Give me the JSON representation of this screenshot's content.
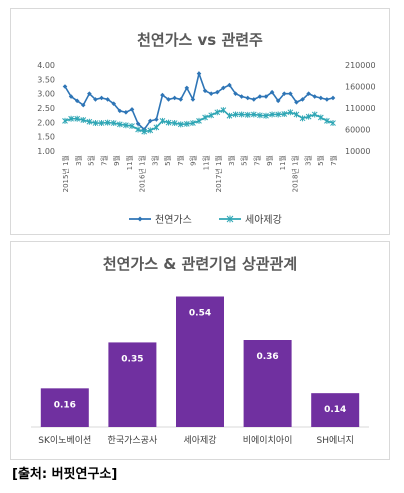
{
  "source_note": "[출처: 버핏연구소]",
  "chart_data": [
    {
      "type": "line",
      "title": "천연가스 vs 관련주",
      "y_left": {
        "ticks": [
          "4.00",
          "3.50",
          "3.00",
          "2.50",
          "2.00",
          "1.50",
          "1.00"
        ],
        "ylim": [
          1.0,
          4.0
        ]
      },
      "y_right": {
        "ticks": [
          "210000",
          "160000",
          "110000",
          "60000",
          "10000"
        ],
        "ylim": [
          10000,
          210000
        ]
      },
      "x_labels": [
        "2015년 1월",
        "3월",
        "5월",
        "7월",
        "9월",
        "11월",
        "2016년 1월",
        "3월",
        "5월",
        "7월",
        "9월",
        "11월",
        "2017년 1월",
        "3월",
        "5월",
        "7월",
        "9월",
        "11월",
        "2018년 1월",
        "3월",
        "5월",
        "7월"
      ],
      "year_labels": [
        "2015년",
        "2016년",
        "2017년",
        "2018년"
      ],
      "month_text": "월",
      "series": [
        {
          "name": "천연가스",
          "axis": "left",
          "color": "#2e75b6",
          "marker": "diamond",
          "values": [
            3.25,
            2.9,
            2.75,
            2.6,
            3.0,
            2.8,
            2.85,
            2.8,
            2.65,
            2.4,
            2.35,
            2.45,
            1.95,
            1.75,
            2.05,
            2.1,
            2.95,
            2.8,
            2.85,
            2.8,
            3.2,
            2.8,
            3.7,
            3.1,
            3.0,
            3.05,
            3.2,
            3.3,
            3.0,
            2.9,
            2.85,
            2.8,
            2.9,
            2.9,
            3.05,
            2.75,
            3.0,
            3.0,
            2.7,
            2.8,
            3.0,
            2.9,
            2.85,
            2.8,
            2.85
          ]
        },
        {
          "name": "세아제강",
          "axis": "right",
          "color": "#2fa6b5",
          "marker": "star",
          "values": [
            80000,
            85000,
            85000,
            82000,
            78000,
            75000,
            75000,
            76000,
            75000,
            72000,
            70000,
            68000,
            60000,
            55000,
            58000,
            65000,
            80000,
            76000,
            75000,
            72000,
            73000,
            75000,
            80000,
            88000,
            93000,
            100000,
            105000,
            92000,
            95000,
            95000,
            94000,
            95000,
            93000,
            92000,
            95000,
            95000,
            96000,
            100000,
            95000,
            86000,
            90000,
            95000,
            88000,
            80000,
            75000
          ]
        }
      ],
      "legend_position": "bottom"
    },
    {
      "type": "bar",
      "title": "천연가스 & 관련기업 상관관계",
      "categories": [
        "SK이노베이션",
        "한국가스공사",
        "세아제강",
        "비에이치아이",
        "SH에너지"
      ],
      "values": [
        0.16,
        0.35,
        0.54,
        0.36,
        0.14
      ],
      "value_labels": [
        "0.16",
        "0.35",
        "0.54",
        "0.36",
        "0.14"
      ],
      "bar_color": "#7030a0",
      "ylim": [
        0,
        0.6
      ]
    }
  ]
}
